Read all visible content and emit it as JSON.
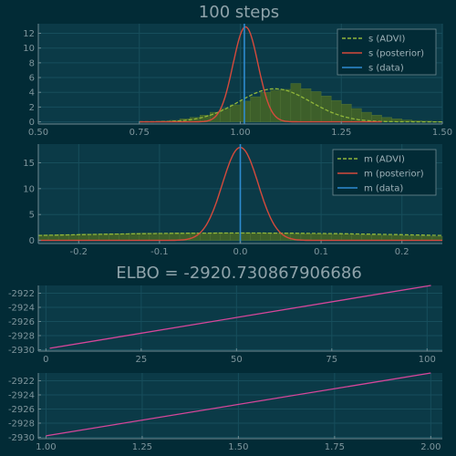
{
  "colors": {
    "background": "#022b36",
    "panel": "#0b3a47",
    "grid": "#174e5c",
    "axis": "#6f8a91",
    "advi": "#90b63a",
    "hist_fill": "#3d5f2a",
    "posterior": "#d54a3c",
    "data": "#2e8bd0",
    "elbo": "#d6469a"
  },
  "chart_data": [
    {
      "id": "s",
      "type": "line",
      "title": "100 steps",
      "xlim": [
        0.5,
        1.5
      ],
      "ylim": [
        -0.3,
        13.3
      ],
      "xticks": [
        0.5,
        0.75,
        1.0,
        1.25,
        1.5
      ],
      "xtick_labels": [
        "0.50",
        "0.75",
        "1.00",
        "1.25",
        "1.50"
      ],
      "yticks": [
        0,
        2,
        4,
        6,
        8,
        10,
        12
      ],
      "ytick_labels": [
        "0",
        "2",
        "4",
        "6",
        "8",
        "10",
        "12"
      ],
      "grid": true,
      "legend_position": "top-right",
      "series": [
        {
          "name": "s (ADVI)",
          "kind": "density",
          "mean": 1.085,
          "sd": 0.089,
          "xrange": [
            0.75,
            1.5
          ]
        },
        {
          "name": "s (posterior)",
          "kind": "density",
          "mean": 1.013,
          "sd": 0.031,
          "xrange": [
            0.75,
            1.35
          ]
        },
        {
          "name": "s (data)",
          "kind": "vline",
          "x": 1.01
        }
      ],
      "histogram": {
        "bin_start": 0.775,
        "bin_width": 0.025,
        "counts": [
          0.05,
          0.1,
          0.2,
          0.4,
          0.6,
          0.9,
          1.3,
          1.8,
          2.3,
          2.8,
          3.4,
          4.0,
          4.3,
          4.4,
          5.2,
          4.5,
          4.1,
          3.5,
          2.9,
          2.4,
          1.8,
          1.3,
          0.9,
          0.6,
          0.4,
          0.25,
          0.15,
          0.1,
          0.05
        ]
      }
    },
    {
      "id": "m",
      "type": "line",
      "xlim": [
        -0.25,
        0.25
      ],
      "ylim": [
        -0.6,
        18.6
      ],
      "xticks": [
        -0.2,
        -0.1,
        0.0,
        0.1,
        0.2
      ],
      "xtick_labels": [
        "-0.2",
        "-0.1",
        "0.0",
        "0.1",
        "0.2"
      ],
      "yticks": [
        0,
        5,
        10,
        15
      ],
      "ytick_labels": [
        "0",
        "5",
        "10",
        "15"
      ],
      "grid": true,
      "legend_position": "top-right",
      "series": [
        {
          "name": "m (ADVI)",
          "kind": "density",
          "mean": 0.0,
          "sd": 0.28,
          "xrange": [
            -0.25,
            0.25
          ]
        },
        {
          "name": "m (posterior)",
          "kind": "density",
          "mean": 0.0,
          "sd": 0.0222,
          "xrange": [
            -0.25,
            0.25
          ]
        },
        {
          "name": "m (data)",
          "kind": "vline",
          "x": 0.0
        }
      ],
      "histogram": {
        "bin_start": -0.25,
        "bin_width": 0.0125,
        "counts": [
          1.05,
          1.05,
          1.15,
          1.1,
          1.2,
          1.2,
          1.25,
          1.3,
          1.3,
          1.35,
          1.4,
          1.4,
          1.35,
          1.45,
          1.4,
          1.45,
          1.4,
          1.5,
          1.45,
          1.4,
          1.5,
          1.4,
          1.45,
          1.4,
          1.4,
          1.35,
          1.3,
          1.3,
          1.25,
          1.2,
          1.2,
          1.15,
          1.1,
          1.05,
          1.0,
          1.0,
          0.95,
          0.9,
          0.85,
          0.8
        ]
      }
    },
    {
      "id": "elbo_steps",
      "type": "line",
      "title": "ELBO = -2920.730867906686",
      "xlim": [
        -2,
        104
      ],
      "ylim": [
        -2930.2,
        -2920.9
      ],
      "xticks": [
        0,
        25,
        50,
        75,
        100
      ],
      "xtick_labels": [
        "0",
        "25",
        "50",
        "75",
        "100"
      ],
      "yticks": [
        -2922,
        -2924,
        -2926,
        -2928,
        -2930
      ],
      "ytick_labels": [
        "-2922",
        "-2924",
        "-2926",
        "-2928",
        "-2930"
      ],
      "grid": true,
      "series": [
        {
          "kind": "line",
          "x": [
            1,
            101
          ],
          "y": [
            -2929.8,
            -2920.9
          ]
        }
      ]
    },
    {
      "id": "elbo_scale",
      "type": "line",
      "xlim": [
        0.98,
        2.03
      ],
      "ylim": [
        -2930.2,
        -2920.9
      ],
      "xticks": [
        1.0,
        1.25,
        1.5,
        1.75,
        2.0
      ],
      "xtick_labels": [
        "1.00",
        "1.25",
        "1.50",
        "1.75",
        "2.00"
      ],
      "yticks": [
        -2922,
        -2924,
        -2926,
        -2928,
        -2930
      ],
      "ytick_labels": [
        "-2922",
        "-2924",
        "-2926",
        "-2928",
        "-2930"
      ],
      "grid": true,
      "series": [
        {
          "kind": "line",
          "x": [
            1.0,
            2.0
          ],
          "y": [
            -2929.8,
            -2920.9
          ]
        }
      ]
    }
  ]
}
